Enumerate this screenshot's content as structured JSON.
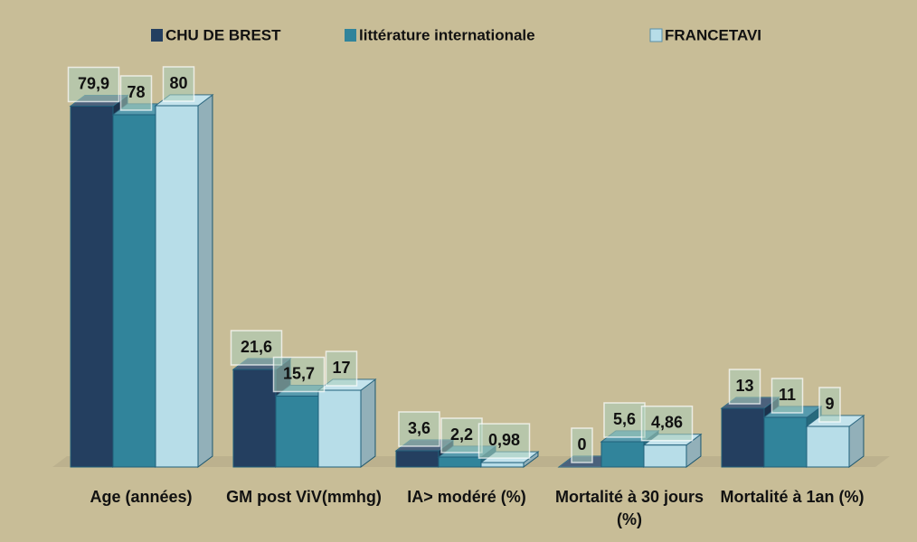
{
  "chart_data": {
    "type": "bar3d",
    "categories": [
      "Age (années)",
      "GM post ViV(mmhg)",
      "IA> modéré (%)",
      "Mortalité à 30 jours (%)",
      "Mortalité à 1an (%)"
    ],
    "series": [
      {
        "name": "CHU DE BREST",
        "color": "#243f60",
        "values": [
          79.9,
          21.6,
          3.6,
          0,
          13
        ],
        "value_labels": [
          "79,9",
          "21,6",
          "3,6",
          "0",
          "13"
        ]
      },
      {
        "name": "littérature internationale",
        "color": "#31849b",
        "values": [
          78,
          15.7,
          2.2,
          5.6,
          11
        ],
        "value_labels": [
          "78",
          "15,7",
          "2,2",
          "5,6",
          "11"
        ]
      },
      {
        "name": "FRANCETAVI",
        "color": "#b7dde8",
        "values": [
          80,
          17,
          0.98,
          4.86,
          9
        ],
        "value_labels": [
          "80",
          "17",
          "0,98",
          "4,86",
          "9"
        ]
      }
    ],
    "legend": "top"
  }
}
